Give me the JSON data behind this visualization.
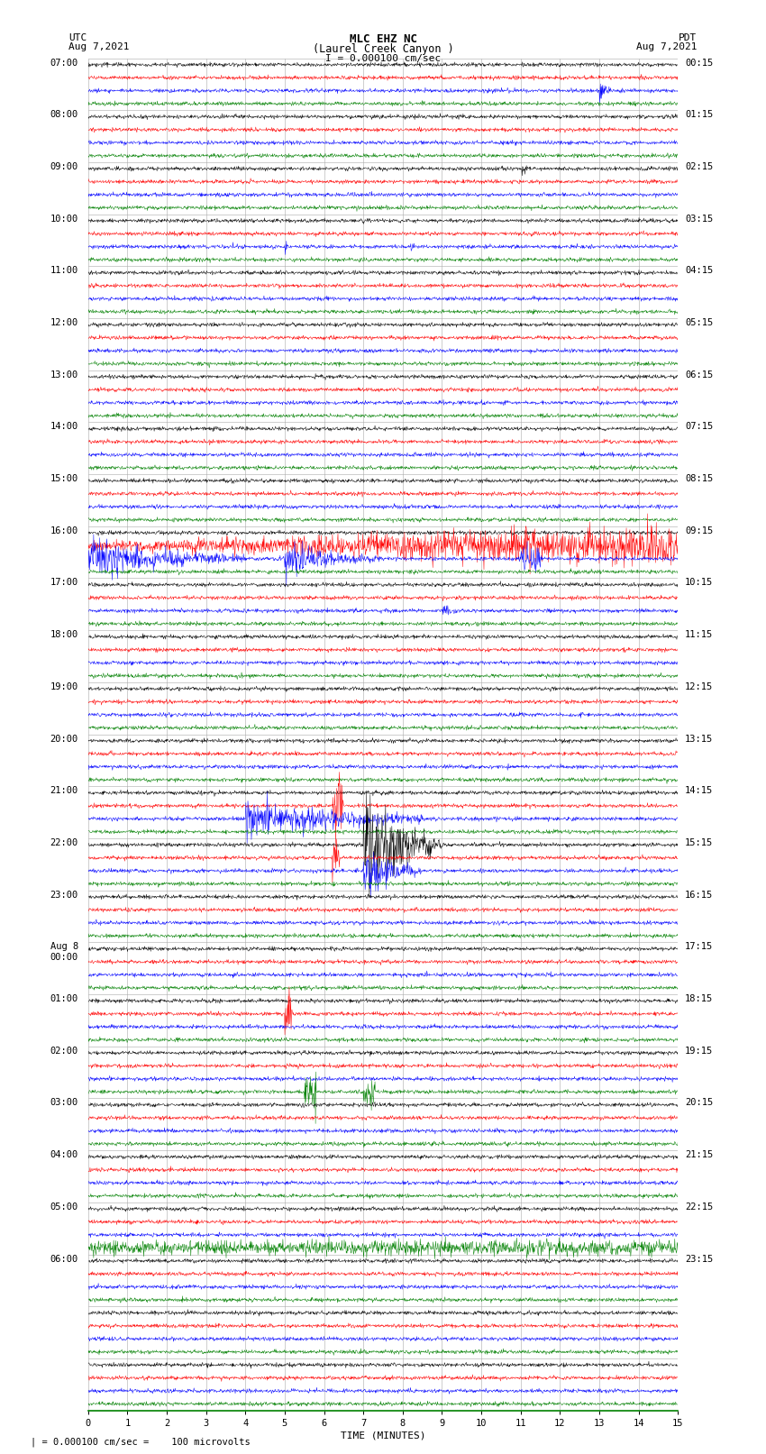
{
  "title_line1": "MLC EHZ NC",
  "title_line2": "(Laurel Creek Canyon )",
  "scale_label": "I = 0.000100 cm/sec",
  "left_date": "UTC\nAug 7,2021",
  "right_date": "PDT\nAug 7,2021",
  "xlabel": "TIME (MINUTES)",
  "footer": "| = 0.000100 cm/sec =    100 microvolts",
  "num_rows": 26,
  "traces_per_row": 4,
  "trace_colors": [
    "black",
    "red",
    "blue",
    "green"
  ],
  "background_color": "white",
  "grid_color": "#aaaaaa",
  "x_ticks": [
    0,
    1,
    2,
    3,
    4,
    5,
    6,
    7,
    8,
    9,
    10,
    11,
    12,
    13,
    14,
    15
  ],
  "left_labels_utc": [
    "07:00",
    "08:00",
    "09:00",
    "10:00",
    "11:00",
    "12:00",
    "13:00",
    "14:00",
    "15:00",
    "16:00",
    "17:00",
    "18:00",
    "19:00",
    "20:00",
    "21:00",
    "22:00",
    "23:00",
    "Aug 8\n00:00",
    "01:00",
    "02:00",
    "03:00",
    "04:00",
    "05:00",
    "06:00",
    "",
    ""
  ],
  "right_labels_pdt": [
    "00:15",
    "01:15",
    "02:15",
    "03:15",
    "04:15",
    "05:15",
    "06:15",
    "07:15",
    "08:15",
    "09:15",
    "10:15",
    "11:15",
    "12:15",
    "13:15",
    "14:15",
    "15:15",
    "16:15",
    "17:15",
    "18:15",
    "19:15",
    "20:15",
    "21:15",
    "22:15",
    "23:15",
    "",
    ""
  ],
  "noise_seed": 42
}
